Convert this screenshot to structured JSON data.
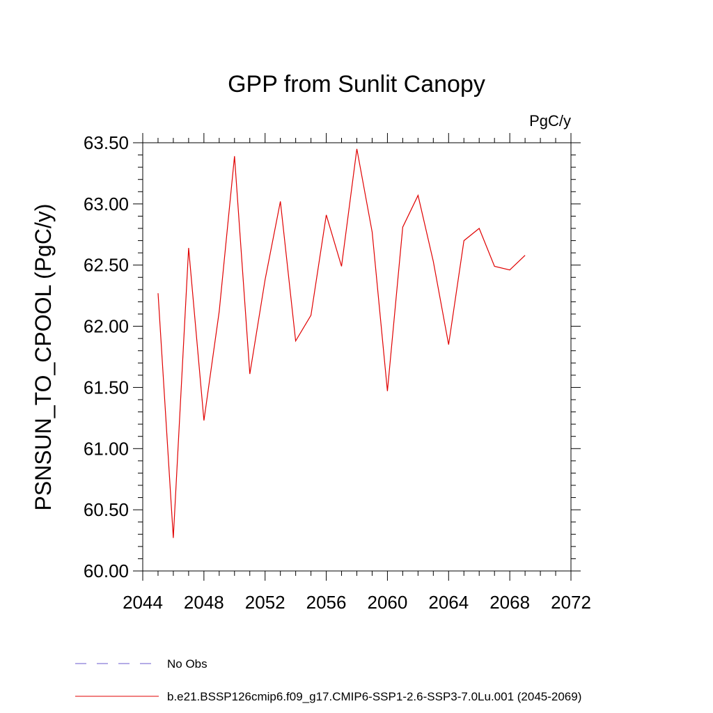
{
  "chart_data": {
    "type": "line",
    "title": "GPP from Sunlit Canopy",
    "units_label": "PgC/y",
    "ylabel": "PSNSUN_TO_CPOOL  (PgC/y)",
    "xlabel": "",
    "xlim": [
      2044,
      2072
    ],
    "ylim": [
      60.0,
      63.5
    ],
    "x_ticks": [
      2044,
      2048,
      2052,
      2056,
      2060,
      2064,
      2068,
      2072
    ],
    "y_ticks": [
      "60.00",
      "60.50",
      "61.00",
      "61.50",
      "62.00",
      "62.50",
      "63.00",
      "63.50"
    ],
    "y_tick_values": [
      60.0,
      60.5,
      61.0,
      61.5,
      62.0,
      62.5,
      63.0,
      63.5
    ],
    "grid": false,
    "legend_position": "bottom",
    "series": [
      {
        "name": "b.e21.BSSP126cmip6.f09_g17.CMIP6-SSP1-2.6-SSP3-7.0Lu.001 (2045-2069)",
        "color": "#e00000",
        "style": "solid",
        "x": [
          2045,
          2046,
          2047,
          2048,
          2049,
          2050,
          2051,
          2052,
          2053,
          2054,
          2055,
          2056,
          2057,
          2058,
          2059,
          2060,
          2061,
          2062,
          2063,
          2064,
          2065,
          2066,
          2067,
          2068,
          2069
        ],
        "y": [
          62.27,
          60.27,
          62.64,
          61.23,
          62.12,
          63.39,
          61.61,
          62.38,
          63.02,
          61.88,
          62.09,
          62.91,
          62.49,
          63.45,
          62.77,
          61.47,
          62.81,
          63.07,
          62.53,
          61.85,
          62.7,
          62.8,
          62.49,
          62.46,
          62.58
        ]
      }
    ],
    "legend": [
      {
        "label": "No Obs",
        "color": "#6a5acd",
        "style": "dashed"
      },
      {
        "label": "b.e21.BSSP126cmip6.f09_g17.CMIP6-SSP1-2.6-SSP3-7.0Lu.001 (2045-2069)",
        "color": "#e00000",
        "style": "solid"
      }
    ]
  }
}
